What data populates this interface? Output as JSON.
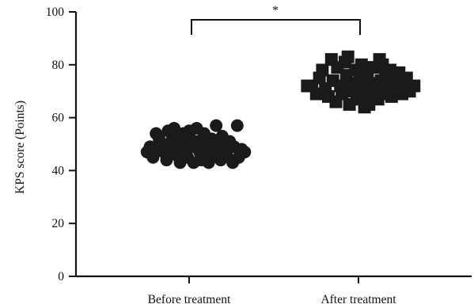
{
  "chart_data": {
    "type": "scatter",
    "title": "",
    "xlabel": "",
    "ylabel": "KPS score (Points)",
    "ylim": [
      0,
      100
    ],
    "yticks": [
      0,
      20,
      40,
      60,
      80,
      100
    ],
    "categories": [
      "Before treatment",
      "After treatment"
    ],
    "grid": false,
    "legend": "none",
    "significance": {
      "label": "*",
      "between": [
        "Before treatment",
        "After treatment"
      ]
    },
    "series": [
      {
        "category": "Before treatment",
        "marker": "circle",
        "color": "#1a1a1a",
        "points": [
          {
            "x": -0.28,
            "y": 47
          },
          {
            "x": -0.26,
            "y": 49
          },
          {
            "x": -0.24,
            "y": 45
          },
          {
            "x": -0.22,
            "y": 54
          },
          {
            "x": -0.2,
            "y": 52
          },
          {
            "x": -0.18,
            "y": 50
          },
          {
            "x": -0.17,
            "y": 47
          },
          {
            "x": -0.15,
            "y": 44
          },
          {
            "x": -0.14,
            "y": 55
          },
          {
            "x": -0.12,
            "y": 51
          },
          {
            "x": -0.11,
            "y": 48
          },
          {
            "x": -0.09,
            "y": 46
          },
          {
            "x": -0.08,
            "y": 53
          },
          {
            "x": -0.06,
            "y": 43
          },
          {
            "x": -0.05,
            "y": 50
          },
          {
            "x": -0.04,
            "y": 54
          },
          {
            "x": -0.02,
            "y": 47
          },
          {
            "x": -0.01,
            "y": 45
          },
          {
            "x": 0.01,
            "y": 52
          },
          {
            "x": 0.02,
            "y": 49
          },
          {
            "x": 0.03,
            "y": 43
          },
          {
            "x": 0.05,
            "y": 56
          },
          {
            "x": 0.06,
            "y": 51
          },
          {
            "x": 0.07,
            "y": 47
          },
          {
            "x": 0.09,
            "y": 45
          },
          {
            "x": 0.1,
            "y": 54
          },
          {
            "x": 0.11,
            "y": 50
          },
          {
            "x": 0.13,
            "y": 43
          },
          {
            "x": 0.14,
            "y": 48
          },
          {
            "x": 0.15,
            "y": 52
          },
          {
            "x": 0.17,
            "y": 46
          },
          {
            "x": 0.18,
            "y": 57
          },
          {
            "x": 0.19,
            "y": 50
          },
          {
            "x": 0.21,
            "y": 44
          },
          {
            "x": 0.22,
            "y": 53
          },
          {
            "x": 0.23,
            "y": 48
          },
          {
            "x": 0.25,
            "y": 46
          },
          {
            "x": 0.27,
            "y": 51
          },
          {
            "x": 0.29,
            "y": 43
          },
          {
            "x": 0.3,
            "y": 49
          },
          {
            "x": 0.32,
            "y": 57
          },
          {
            "x": 0.33,
            "y": 45
          },
          {
            "x": 0.35,
            "y": 48
          },
          {
            "x": 0.37,
            "y": 47
          },
          {
            "x": -0.1,
            "y": 56
          },
          {
            "x": 0.0,
            "y": 55
          },
          {
            "x": 0.08,
            "y": 44
          },
          {
            "x": -0.19,
            "y": 48
          }
        ]
      },
      {
        "category": "After treatment",
        "marker": "square",
        "color": "#1a1a1a",
        "points": [
          {
            "x": -0.34,
            "y": 72
          },
          {
            "x": -0.31,
            "y": 72
          },
          {
            "x": -0.28,
            "y": 69
          },
          {
            "x": -0.26,
            "y": 75
          },
          {
            "x": -0.24,
            "y": 78
          },
          {
            "x": -0.22,
            "y": 71
          },
          {
            "x": -0.2,
            "y": 68
          },
          {
            "x": -0.18,
            "y": 82
          },
          {
            "x": -0.17,
            "y": 74
          },
          {
            "x": -0.15,
            "y": 66
          },
          {
            "x": -0.14,
            "y": 79
          },
          {
            "x": -0.12,
            "y": 72
          },
          {
            "x": -0.11,
            "y": 69
          },
          {
            "x": -0.09,
            "y": 81
          },
          {
            "x": -0.08,
            "y": 76
          },
          {
            "x": -0.06,
            "y": 65
          },
          {
            "x": -0.05,
            "y": 73
          },
          {
            "x": -0.04,
            "y": 70
          },
          {
            "x": -0.02,
            "y": 78
          },
          {
            "x": -0.01,
            "y": 67
          },
          {
            "x": 0.01,
            "y": 75
          },
          {
            "x": 0.02,
            "y": 80
          },
          {
            "x": 0.03,
            "y": 71
          },
          {
            "x": 0.05,
            "y": 68
          },
          {
            "x": 0.06,
            "y": 77
          },
          {
            "x": 0.07,
            "y": 65
          },
          {
            "x": 0.09,
            "y": 73
          },
          {
            "x": 0.1,
            "y": 79
          },
          {
            "x": 0.11,
            "y": 70
          },
          {
            "x": 0.13,
            "y": 67
          },
          {
            "x": 0.14,
            "y": 82
          },
          {
            "x": 0.15,
            "y": 74
          },
          {
            "x": 0.17,
            "y": 69
          },
          {
            "x": 0.18,
            "y": 76
          },
          {
            "x": 0.19,
            "y": 72
          },
          {
            "x": 0.21,
            "y": 78
          },
          {
            "x": 0.22,
            "y": 68
          },
          {
            "x": 0.23,
            "y": 74
          },
          {
            "x": 0.25,
            "y": 71
          },
          {
            "x": 0.27,
            "y": 77
          },
          {
            "x": 0.29,
            "y": 69
          },
          {
            "x": 0.3,
            "y": 73
          },
          {
            "x": 0.32,
            "y": 75
          },
          {
            "x": 0.34,
            "y": 70
          },
          {
            "x": 0.37,
            "y": 72
          },
          {
            "x": -0.07,
            "y": 83
          },
          {
            "x": 0.04,
            "y": 64
          },
          {
            "x": 0.16,
            "y": 80
          }
        ]
      }
    ]
  }
}
